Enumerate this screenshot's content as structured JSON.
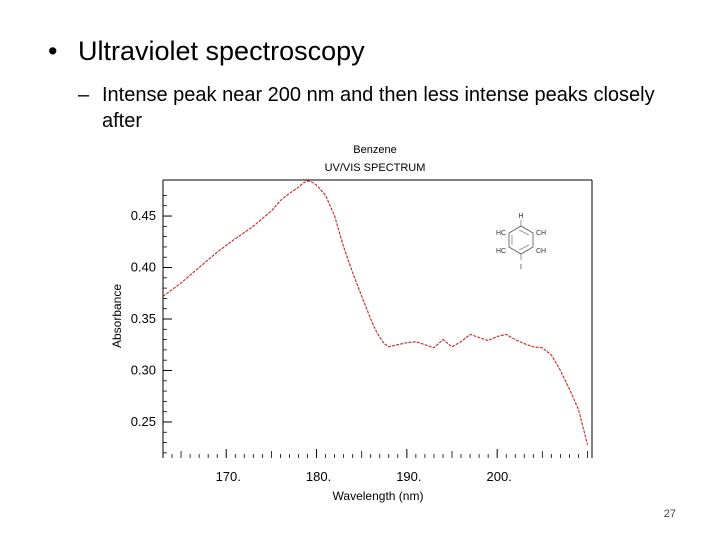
{
  "slide": {
    "bullet": "Ultraviolet spectroscopy",
    "bullet_symbol": "•",
    "sub_dash": "–",
    "sub_bullet": "Intense peak near 200 nm and then less intense peaks closely after",
    "page_number": "27"
  },
  "chart_data": {
    "type": "line",
    "title": "Benzene",
    "subtitle": "UV/VIS SPECTRUM",
    "xlabel": "Wavelength (nm)",
    "ylabel": "Absorbance",
    "xlim": [
      163,
      210.5
    ],
    "ylim": [
      0.215,
      0.485
    ],
    "xticks": [
      170,
      180,
      190,
      200
    ],
    "xtick_labels": [
      "170.",
      "180.",
      "190.",
      "200."
    ],
    "yticks": [
      0.25,
      0.3,
      0.35,
      0.4,
      0.45
    ],
    "ytick_labels": [
      "0.25",
      "0.30",
      "0.35",
      "0.40",
      "0.45"
    ],
    "line_color": "#cc2222",
    "series": [
      {
        "name": "Benzene",
        "x": [
          163,
          165,
          167,
          169,
          171,
          173,
          175,
          176,
          177,
          178,
          178.5,
          179,
          179.5,
          180,
          181,
          182,
          183,
          184,
          185,
          186,
          186.5,
          187,
          187.5,
          188,
          189,
          190,
          191,
          192,
          193,
          194,
          195,
          196,
          197,
          198,
          199,
          200,
          201,
          202,
          203,
          204,
          205,
          206,
          207,
          208,
          209,
          209.5,
          210
        ],
        "y": [
          0.372,
          0.385,
          0.4,
          0.415,
          0.428,
          0.44,
          0.455,
          0.465,
          0.472,
          0.478,
          0.482,
          0.484,
          0.483,
          0.48,
          0.47,
          0.45,
          0.42,
          0.395,
          0.372,
          0.35,
          0.34,
          0.332,
          0.326,
          0.323,
          0.325,
          0.327,
          0.328,
          0.325,
          0.322,
          0.33,
          0.323,
          0.328,
          0.335,
          0.332,
          0.329,
          0.333,
          0.335,
          0.33,
          0.326,
          0.323,
          0.322,
          0.315,
          0.3,
          0.282,
          0.262,
          0.245,
          0.228
        ]
      }
    ]
  },
  "molecule": {
    "name": "benzene-structure",
    "labels": [
      "H",
      "HC",
      "CH",
      "HC",
      "CH",
      "I"
    ]
  }
}
